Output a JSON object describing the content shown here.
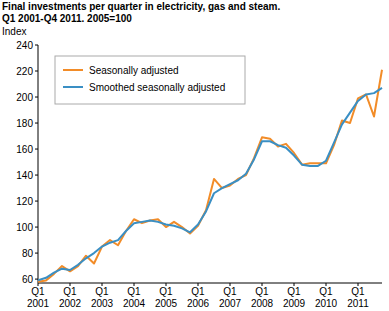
{
  "chart_data": {
    "type": "line",
    "title": "Final investments per quarter in electricity, gas and steam.",
    "subtitle": "Q1 2001-Q4 2011. 2005=100",
    "y_label": "Index",
    "categories": [
      "Q1 2001",
      null,
      null,
      null,
      "Q1 2002",
      null,
      null,
      null,
      "Q1 2003",
      null,
      null,
      null,
      "Q1 2004",
      null,
      null,
      null,
      "Q1 2005",
      null,
      null,
      null,
      "Q1 2006",
      null,
      null,
      null,
      "Q1 2007",
      null,
      null,
      null,
      "Q1 2008",
      null,
      null,
      null,
      "Q1 2009",
      null,
      null,
      null,
      "Q1 2010",
      null,
      null,
      null,
      "Q1 2011",
      null,
      null,
      null
    ],
    "series": [
      {
        "name": "Seasonally adjusted",
        "color": "#f28c28",
        "values": [
          58,
          59,
          64,
          70,
          66,
          70,
          78,
          72,
          85,
          90,
          86,
          97,
          106,
          103,
          105,
          106,
          100,
          104,
          100,
          95,
          101,
          113,
          137,
          130,
          132,
          137,
          140,
          153,
          169,
          168,
          162,
          164,
          157,
          148,
          149,
          149,
          149,
          163,
          182,
          180,
          199,
          202,
          185,
          221
        ]
      },
      {
        "name": "Smoothed seasonally adjusted",
        "color": "#3a8fc4",
        "values": [
          59,
          61,
          65,
          68,
          67,
          71,
          76,
          80,
          85,
          88,
          90,
          97,
          103,
          104,
          105,
          104,
          102,
          101,
          99,
          96,
          102,
          112,
          126,
          130,
          133,
          136,
          141,
          152,
          166,
          166,
          163,
          161,
          155,
          148,
          147,
          147,
          151,
          165,
          179,
          188,
          197,
          202,
          203,
          207
        ]
      }
    ],
    "ylim": [
      57,
      240
    ],
    "yticks": [
      60,
      80,
      100,
      120,
      140,
      160,
      180,
      200,
      220,
      240
    ],
    "grid": false,
    "legend": "top-left"
  }
}
